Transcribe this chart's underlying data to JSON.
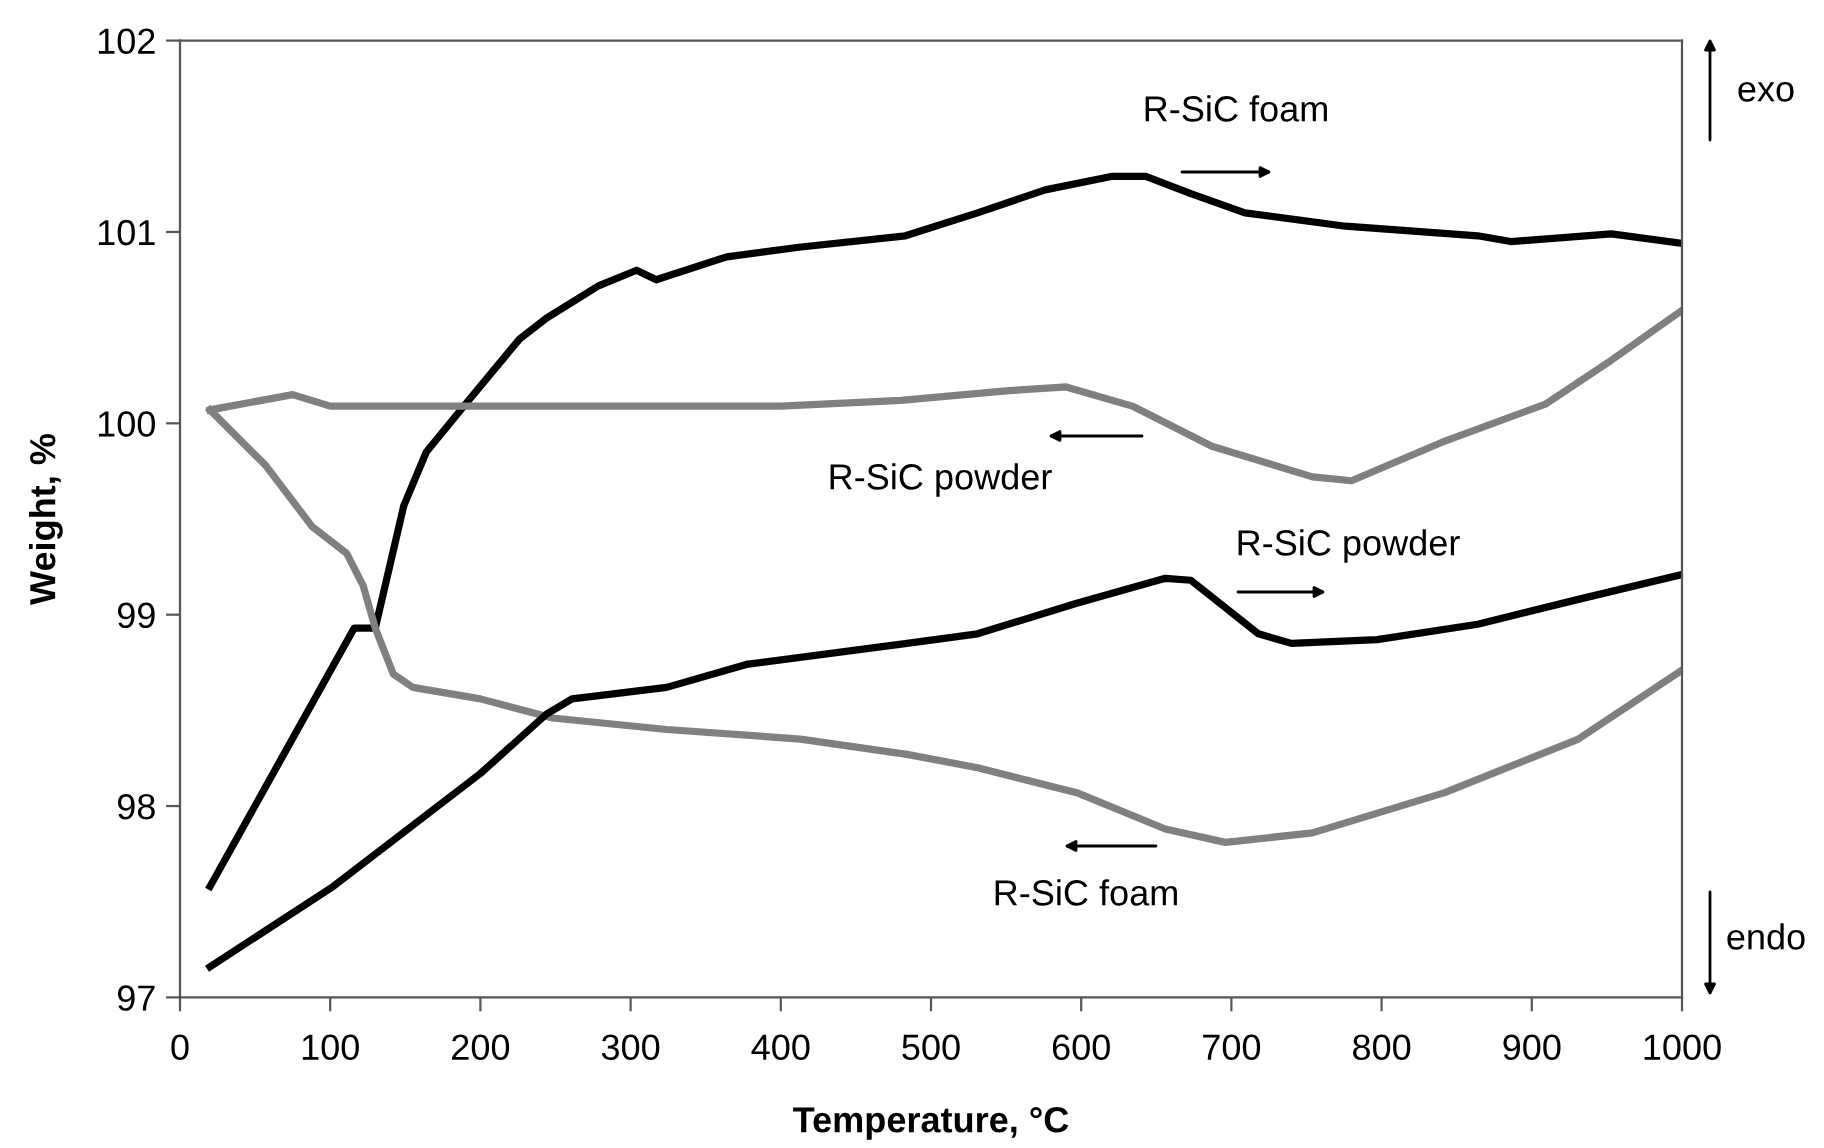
{
  "chart_data": {
    "type": "line",
    "xlabel": "Temperature, °C",
    "ylabel": "Weight, %",
    "xlim": [
      0,
      1000
    ],
    "xticks": [
      0,
      100,
      200,
      300,
      400,
      500,
      600,
      700,
      800,
      900,
      1000
    ],
    "ylim": [
      97,
      102
    ],
    "yticks": [
      97,
      98,
      99,
      100,
      101,
      102
    ],
    "grid": false,
    "legend": false,
    "marker": "none",
    "line_style": "solid",
    "series": [
      {
        "color": "#000000",
        "x": [
          20,
          116,
          130,
          149,
          164,
          190,
          226,
          244,
          279,
          304,
          317,
          364,
          412,
          483,
          531,
          576,
          620,
          643,
          673,
          709,
          776,
          864,
          886,
          953,
          1000
        ],
        "values": [
          97.58,
          98.93,
          98.93,
          99.57,
          99.85,
          100.1,
          100.44,
          100.55,
          100.72,
          100.8,
          100.75,
          100.87,
          100.92,
          100.98,
          101.1,
          101.22,
          101.29,
          101.29,
          101.2,
          101.1,
          101.03,
          100.98,
          100.95,
          100.99,
          100.94
        ]
      },
      {
        "color": "#808080",
        "x": [
          20,
          75,
          100,
          200,
          400,
          480,
          550,
          590,
          634,
          687,
          754,
          780,
          843,
          909,
          953,
          1000
        ],
        "values": [
          100.07,
          100.15,
          100.09,
          100.09,
          100.09,
          100.12,
          100.17,
          100.19,
          100.09,
          99.88,
          99.72,
          99.7,
          99.91,
          100.1,
          100.33,
          100.59
        ]
      },
      {
        "color": "#808080",
        "x": [
          20,
          57,
          88,
          111,
          122,
          130,
          142,
          155,
          200,
          248,
          324,
          413,
          484,
          531,
          597,
          656,
          696,
          754,
          842,
          931,
          1000
        ],
        "values": [
          100.07,
          99.78,
          99.46,
          99.32,
          99.15,
          98.93,
          98.69,
          98.62,
          98.56,
          98.46,
          98.4,
          98.35,
          98.27,
          98.2,
          98.07,
          97.88,
          97.81,
          97.86,
          98.07,
          98.35,
          98.71
        ]
      },
      {
        "color": "#000000",
        "x": [
          20,
          102,
          200,
          244,
          261,
          324,
          377,
          484,
          531,
          597,
          656,
          673,
          718,
          740,
          797,
          864,
          931,
          1000
        ],
        "values": [
          97.16,
          97.58,
          98.17,
          98.48,
          98.56,
          98.62,
          98.74,
          98.85,
          98.9,
          99.06,
          99.19,
          99.18,
          98.9,
          98.85,
          98.87,
          98.95,
          99.08,
          99.21
        ]
      }
    ],
    "annotations": [
      "R-SiC foam",
      "R-SiC powder",
      "R-SiC powder",
      "R-SiC foam",
      "exo",
      "endo"
    ]
  }
}
